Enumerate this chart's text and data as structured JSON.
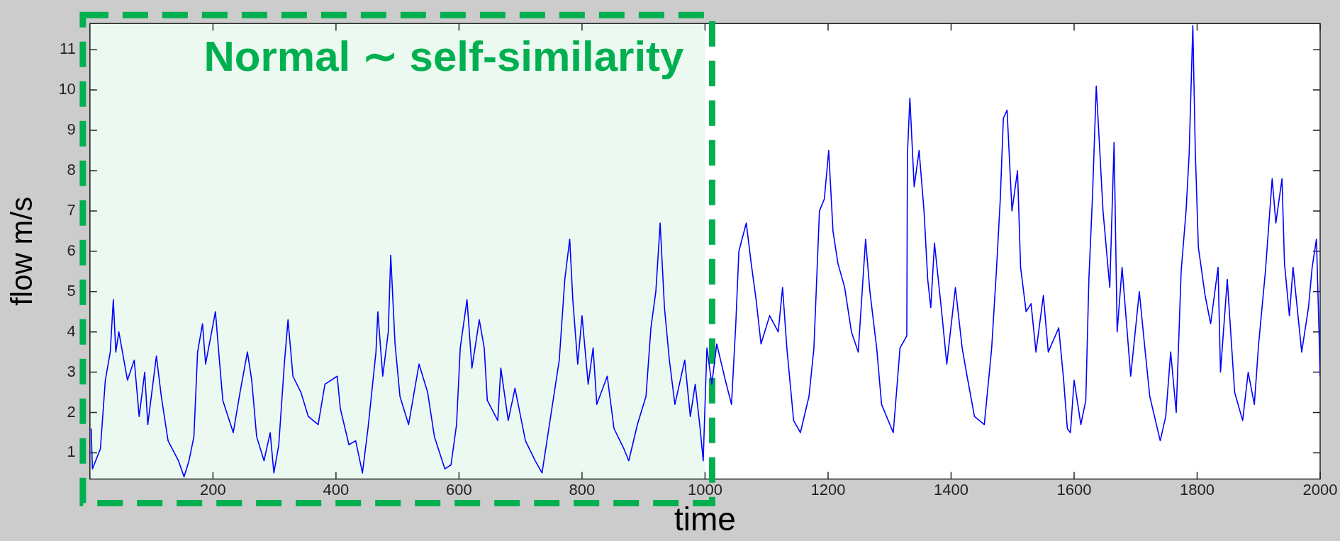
{
  "chart_data": {
    "type": "line",
    "xlabel": "time",
    "ylabel": "flow m/s",
    "x": [
      2,
      4,
      17,
      25,
      33,
      38,
      42,
      47,
      61,
      72,
      80,
      89,
      94,
      108,
      116,
      127,
      144,
      153,
      161,
      169,
      175,
      183,
      188,
      204,
      211,
      216,
      233,
      244,
      256,
      263,
      271,
      283,
      293,
      299,
      307,
      316,
      322,
      330,
      343,
      355,
      371,
      382,
      402,
      407,
      421,
      432,
      443,
      452,
      465,
      468,
      476,
      485,
      489,
      496,
      504,
      518,
      535,
      549,
      560,
      577,
      587,
      596,
      602,
      613,
      621,
      633,
      641,
      646,
      663,
      668,
      680,
      691,
      708,
      724,
      735,
      749,
      763,
      772,
      780,
      785,
      793,
      800,
      810,
      818,
      824,
      841,
      852,
      868,
      876,
      890,
      904,
      912,
      920,
      927,
      934,
      942,
      951,
      967,
      976,
      984,
      992,
      997,
      1003,
      1011,
      1019,
      1033,
      1043,
      1050,
      1055,
      1067,
      1075,
      1083,
      1091,
      1105,
      1119,
      1126,
      1133,
      1144,
      1155,
      1169,
      1177,
      1186,
      1194,
      1201,
      1208,
      1216,
      1227,
      1238,
      1249,
      1261,
      1268,
      1279,
      1287,
      1306,
      1317,
      1328,
      1329,
      1333,
      1340,
      1348,
      1356,
      1362,
      1367,
      1373,
      1384,
      1393,
      1407,
      1418,
      1426,
      1438,
      1454,
      1466,
      1474,
      1480,
      1485,
      1491,
      1499,
      1508,
      1513,
      1522,
      1530,
      1538,
      1550,
      1558,
      1575,
      1583,
      1589,
      1594,
      1600,
      1611,
      1619,
      1624,
      1630,
      1636,
      1641,
      1647,
      1658,
      1665,
      1670,
      1678,
      1692,
      1706,
      1715,
      1723,
      1740,
      1749,
      1757,
      1766,
      1774,
      1782,
      1787,
      1793,
      1797,
      1802,
      1813,
      1822,
      1834,
      1838,
      1849,
      1861,
      1874,
      1883,
      1893,
      1900,
      1911,
      1922,
      1928,
      1938,
      1942,
      1950,
      1956,
      1970,
      1981,
      1987,
      1994,
      1998,
      2000
    ],
    "series": [
      {
        "color": "#0000ff",
        "values": [
          1.6,
          0.6,
          1.1,
          2.8,
          3.5,
          4.8,
          3.5,
          4.0,
          2.8,
          3.3,
          1.9,
          3.0,
          1.7,
          3.4,
          2.4,
          1.3,
          0.8,
          0.4,
          0.8,
          1.4,
          3.5,
          4.2,
          3.2,
          4.5,
          3.2,
          2.3,
          1.5,
          2.5,
          3.5,
          2.8,
          1.4,
          0.8,
          1.5,
          0.5,
          1.2,
          3.2,
          4.3,
          2.9,
          2.5,
          1.9,
          1.7,
          2.7,
          2.9,
          2.1,
          1.2,
          1.3,
          0.5,
          1.6,
          3.5,
          4.5,
          2.9,
          4.0,
          5.9,
          3.7,
          2.4,
          1.7,
          3.2,
          2.5,
          1.4,
          0.6,
          0.7,
          1.7,
          3.6,
          4.8,
          3.1,
          4.3,
          3.6,
          2.3,
          1.8,
          3.1,
          1.8,
          2.6,
          1.3,
          0.8,
          0.5,
          1.9,
          3.3,
          5.3,
          6.3,
          4.8,
          3.2,
          4.4,
          2.7,
          3.6,
          2.2,
          2.9,
          1.6,
          1.1,
          0.8,
          1.7,
          2.4,
          4.1,
          5.0,
          6.7,
          4.6,
          3.3,
          2.2,
          3.3,
          1.9,
          2.7,
          1.6,
          0.8,
          3.6,
          2.7,
          3.7,
          2.8,
          2.2,
          4.2,
          6.0,
          6.7,
          5.7,
          4.8,
          3.7,
          4.4,
          4.0,
          5.1,
          3.6,
          1.8,
          1.5,
          2.4,
          3.6,
          7.0,
          7.3,
          8.5,
          6.5,
          5.7,
          5.1,
          4.0,
          3.5,
          6.3,
          5.0,
          3.6,
          2.2,
          1.5,
          3.6,
          3.9,
          8.4,
          9.8,
          7.6,
          8.5,
          7.0,
          5.3,
          4.6,
          6.2,
          4.6,
          3.2,
          5.1,
          3.6,
          2.9,
          1.9,
          1.7,
          3.6,
          5.6,
          7.3,
          9.3,
          9.5,
          7.0,
          8.0,
          5.6,
          4.5,
          4.7,
          3.5,
          4.9,
          3.5,
          4.1,
          2.8,
          1.6,
          1.5,
          2.8,
          1.7,
          2.3,
          5.3,
          7.4,
          10.1,
          8.7,
          7.0,
          5.1,
          8.7,
          4.0,
          5.6,
          2.9,
          5.0,
          3.6,
          2.4,
          1.3,
          1.9,
          3.5,
          2.0,
          5.5,
          7.0,
          8.4,
          11.6,
          8.5,
          6.1,
          4.9,
          4.2,
          5.6,
          3.0,
          5.3,
          2.5,
          1.8,
          3.0,
          2.2,
          3.7,
          5.5,
          7.8,
          6.7,
          7.8,
          5.7,
          4.4,
          5.6,
          3.5,
          4.6,
          5.6,
          6.3,
          4.1,
          2.9
        ]
      }
    ],
    "xlim": [
      0,
      2000
    ],
    "xticks": [
      200,
      400,
      600,
      800,
      1000,
      1200,
      1400,
      1600,
      1800,
      2000
    ],
    "ylim": [
      0.35,
      11.65
    ],
    "yticks": [
      1,
      2,
      3,
      4,
      5,
      6,
      7,
      8,
      9,
      10,
      11
    ],
    "grid": false,
    "legend": false,
    "line_style": "solid",
    "marker": "none",
    "bands": [
      {
        "axis": "x",
        "from": 0,
        "to": 1000,
        "label": "Normal ∼ self-similarity",
        "color": "#00b050"
      }
    ]
  }
}
